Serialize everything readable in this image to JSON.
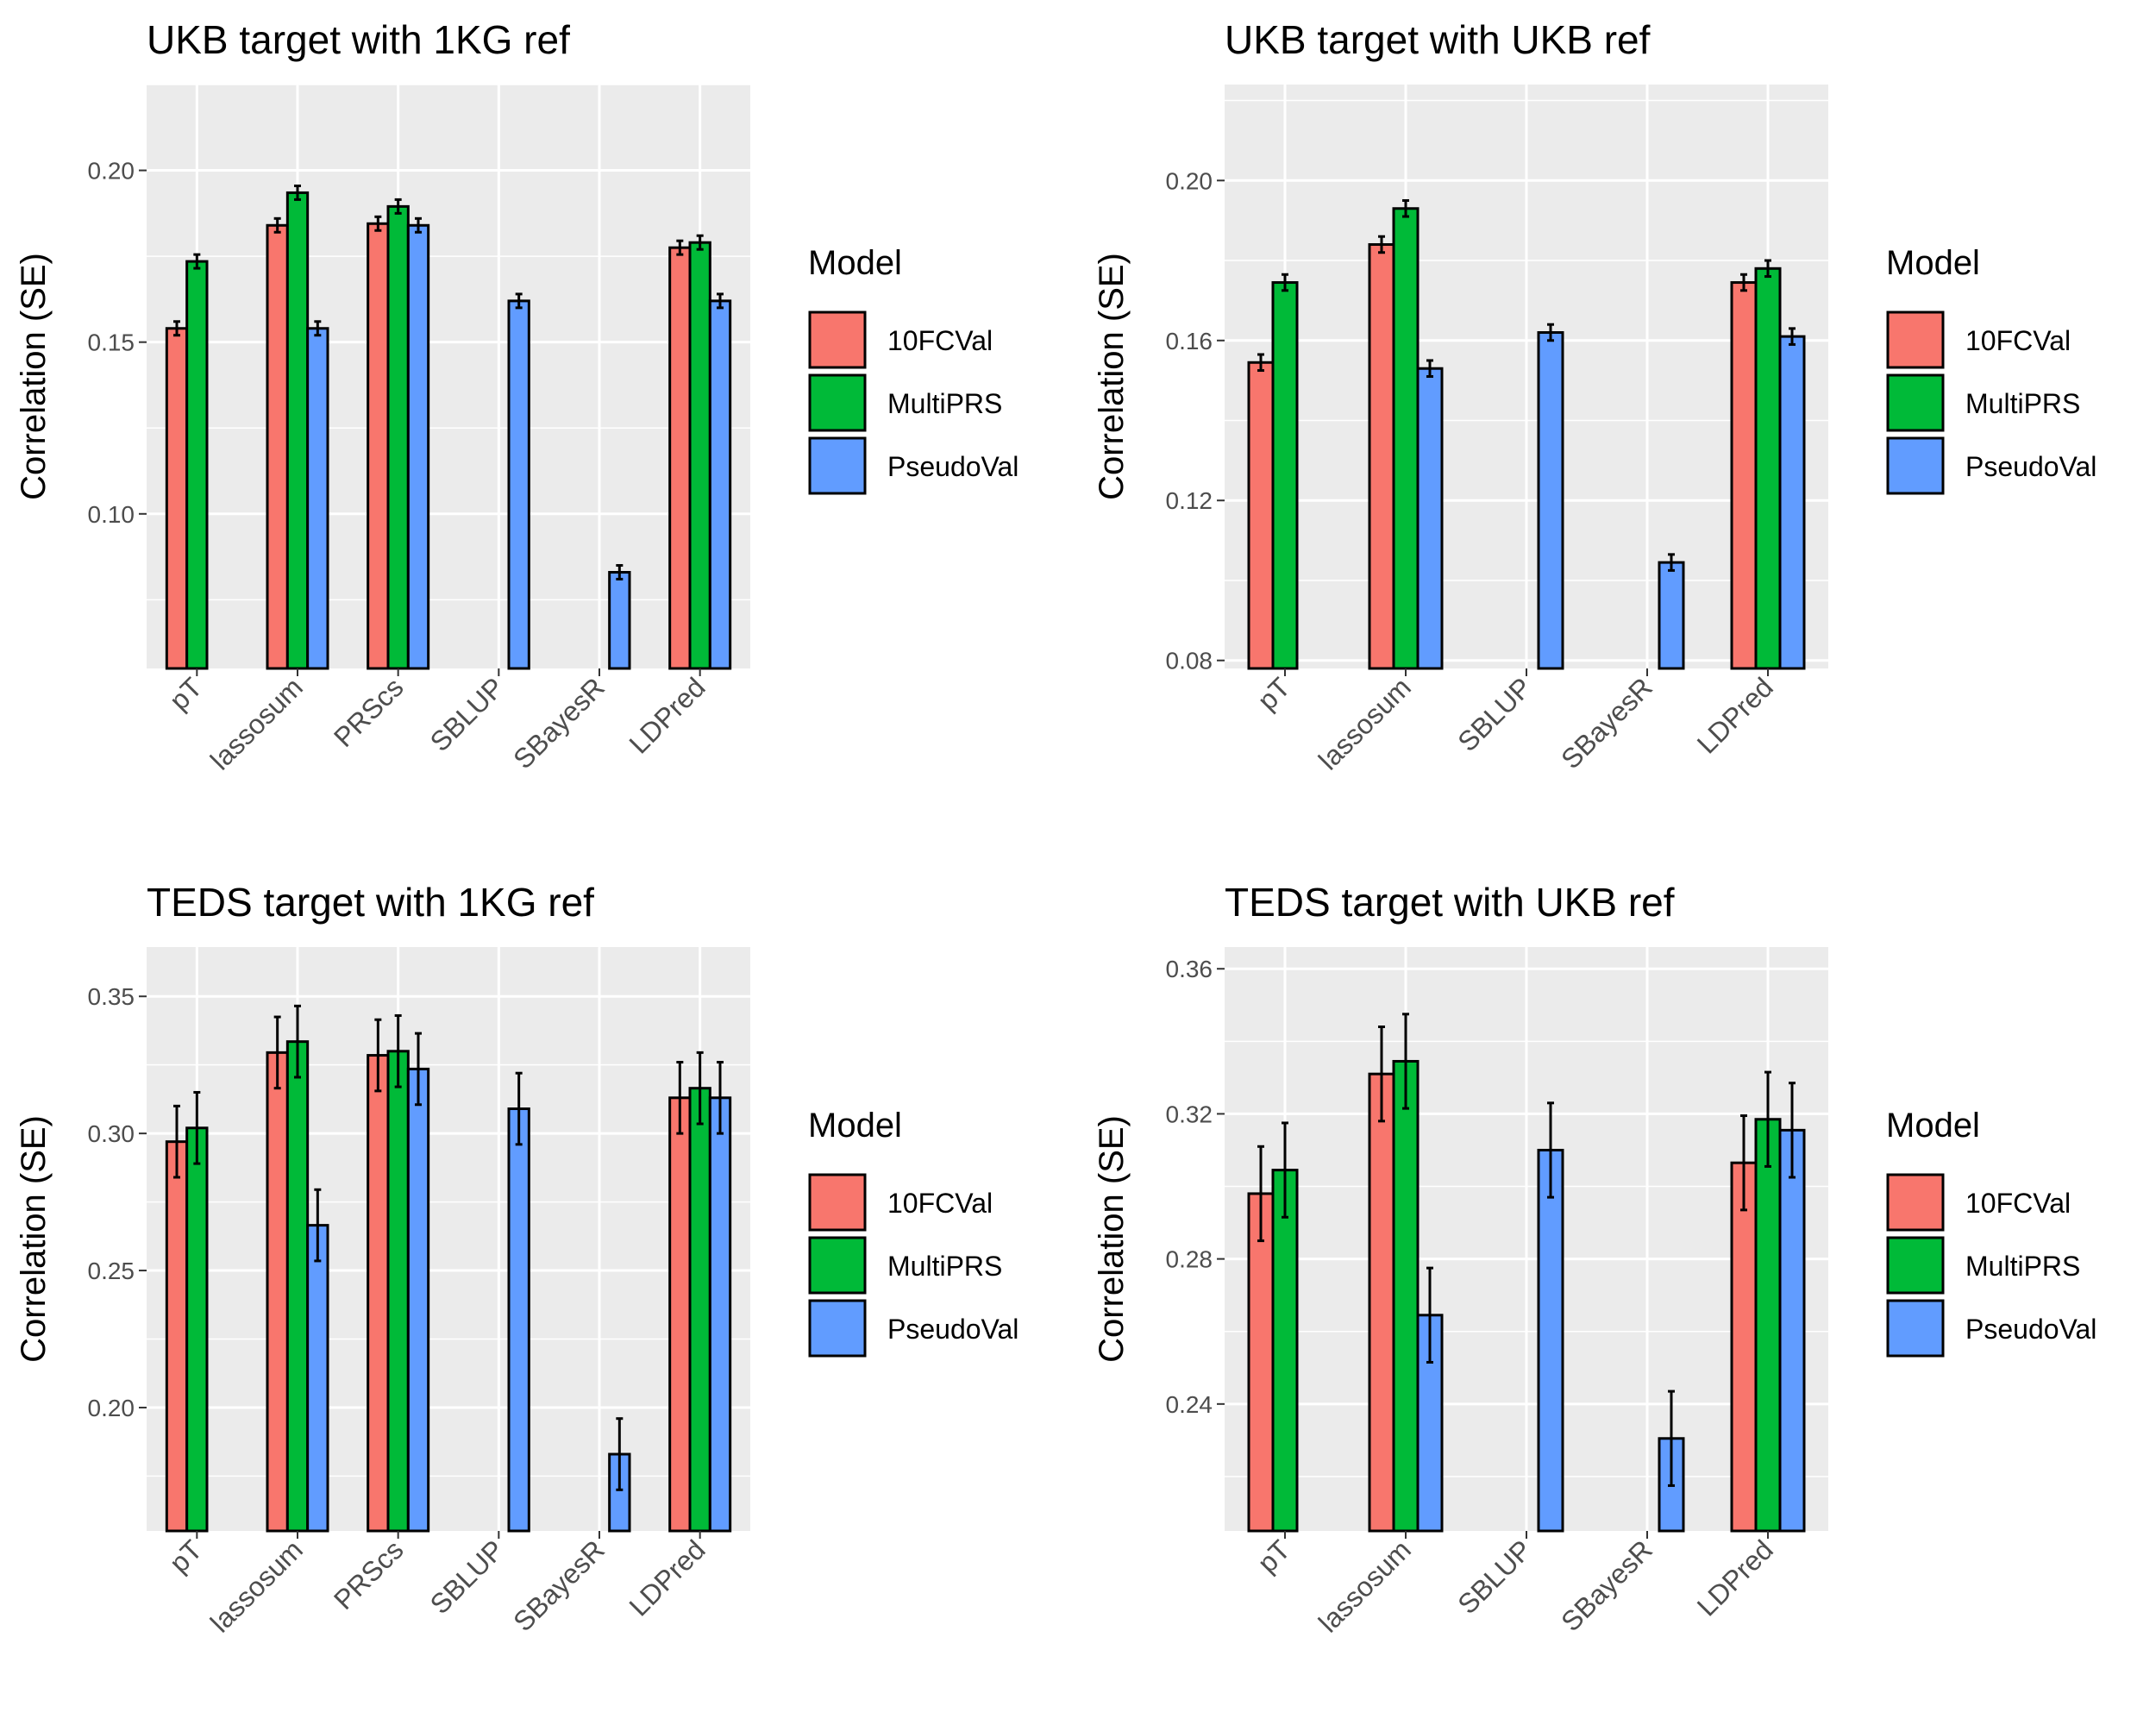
{
  "legend": {
    "title": "Model",
    "entries": [
      {
        "name": "10FCVal",
        "color": "#F8766D"
      },
      {
        "name": "MultiPRS",
        "color": "#00BA38"
      },
      {
        "name": "PseudoVal",
        "color": "#619CFF"
      }
    ]
  },
  "chart_data": [
    {
      "type": "bar",
      "title": "UKB target with 1KG ref",
      "ylabel": "Correlation (SE)",
      "xlabel": "",
      "ylim": [
        0.055,
        0.225
      ],
      "yticks": [
        0.1,
        0.15,
        0.2
      ],
      "ytick_labels": [
        "0.10",
        "0.15",
        "0.20"
      ],
      "categories": [
        "pT",
        "lassosum",
        "PRScs",
        "SBLUP",
        "SBayesR",
        "LDPred"
      ],
      "series": [
        {
          "name": "10FCVal",
          "values": [
            0.154,
            0.184,
            0.1845,
            null,
            null,
            0.1775
          ],
          "se": [
            0.002,
            0.002,
            0.002,
            null,
            null,
            0.002
          ]
        },
        {
          "name": "MultiPRS",
          "values": [
            0.1735,
            0.1935,
            0.1895,
            null,
            null,
            0.179
          ],
          "se": [
            0.002,
            0.002,
            0.002,
            null,
            null,
            0.002
          ]
        },
        {
          "name": "PseudoVal",
          "values": [
            null,
            0.154,
            0.184,
            0.162,
            0.083,
            0.162
          ],
          "se": [
            null,
            0.002,
            0.002,
            0.002,
            0.002,
            0.002
          ]
        }
      ],
      "grid": true,
      "legend_position": "right"
    },
    {
      "type": "bar",
      "title": "UKB target with UKB ref",
      "ylabel": "Correlation (SE)",
      "xlabel": "",
      "ylim": [
        0.078,
        0.224
      ],
      "yticks": [
        0.08,
        0.12,
        0.16,
        0.2
      ],
      "ytick_labels": [
        "0.08",
        "0.12",
        "0.16",
        "0.20"
      ],
      "categories": [
        "pT",
        "lassosum",
        "SBLUP",
        "SBayesR",
        "LDPred"
      ],
      "series": [
        {
          "name": "10FCVal",
          "values": [
            0.1545,
            0.184,
            null,
            null,
            0.1745
          ],
          "se": [
            0.002,
            0.002,
            null,
            null,
            0.002
          ]
        },
        {
          "name": "MultiPRS",
          "values": [
            0.1745,
            0.193,
            null,
            null,
            0.178
          ],
          "se": [
            0.002,
            0.002,
            null,
            null,
            0.002
          ]
        },
        {
          "name": "PseudoVal",
          "values": [
            null,
            0.153,
            0.162,
            0.1045,
            0.161
          ],
          "se": [
            null,
            0.002,
            0.002,
            0.002,
            0.002
          ]
        }
      ],
      "grid": true,
      "legend_position": "right"
    },
    {
      "type": "bar",
      "title": "TEDS target with 1KG ref",
      "ylabel": "Correlation (SE)",
      "xlabel": "",
      "ylim": [
        0.155,
        0.368
      ],
      "yticks": [
        0.2,
        0.25,
        0.3,
        0.35
      ],
      "ytick_labels": [
        "0.20",
        "0.25",
        "0.30",
        "0.35"
      ],
      "categories": [
        "pT",
        "lassosum",
        "PRScs",
        "SBLUP",
        "SBayesR",
        "LDPred"
      ],
      "series": [
        {
          "name": "10FCVal",
          "values": [
            0.297,
            0.3295,
            0.3285,
            null,
            null,
            0.313
          ],
          "se": [
            0.013,
            0.013,
            0.013,
            null,
            null,
            0.013
          ]
        },
        {
          "name": "MultiPRS",
          "values": [
            0.302,
            0.3335,
            0.33,
            null,
            null,
            0.3165
          ],
          "se": [
            0.013,
            0.013,
            0.013,
            null,
            null,
            0.013
          ]
        },
        {
          "name": "PseudoVal",
          "values": [
            null,
            0.2665,
            0.3235,
            0.309,
            0.183,
            0.313
          ],
          "se": [
            null,
            0.013,
            0.013,
            0.013,
            0.013,
            0.013
          ]
        }
      ],
      "grid": true,
      "legend_position": "right"
    },
    {
      "type": "bar",
      "title": "TEDS target with UKB ref",
      "ylabel": "Correlation (SE)",
      "xlabel": "",
      "ylim": [
        0.205,
        0.366
      ],
      "yticks": [
        0.24,
        0.28,
        0.32,
        0.36
      ],
      "ytick_labels": [
        "0.24",
        "0.28",
        "0.32",
        "0.36"
      ],
      "categories": [
        "pT",
        "lassosum",
        "SBLUP",
        "SBayesR",
        "LDPred"
      ],
      "series": [
        {
          "name": "10FCVal",
          "values": [
            0.298,
            0.331,
            null,
            null,
            0.3065
          ],
          "se": [
            0.013,
            0.013,
            null,
            null,
            0.013
          ]
        },
        {
          "name": "MultiPRS",
          "values": [
            0.3045,
            0.3345,
            null,
            null,
            0.3185
          ],
          "se": [
            0.013,
            0.013,
            null,
            null,
            0.013
          ]
        },
        {
          "name": "PseudoVal",
          "values": [
            null,
            0.2645,
            0.31,
            0.2305,
            0.3155
          ],
          "se": [
            null,
            0.013,
            0.013,
            0.013,
            0.013
          ]
        }
      ],
      "grid": true,
      "legend_position": "right"
    }
  ]
}
